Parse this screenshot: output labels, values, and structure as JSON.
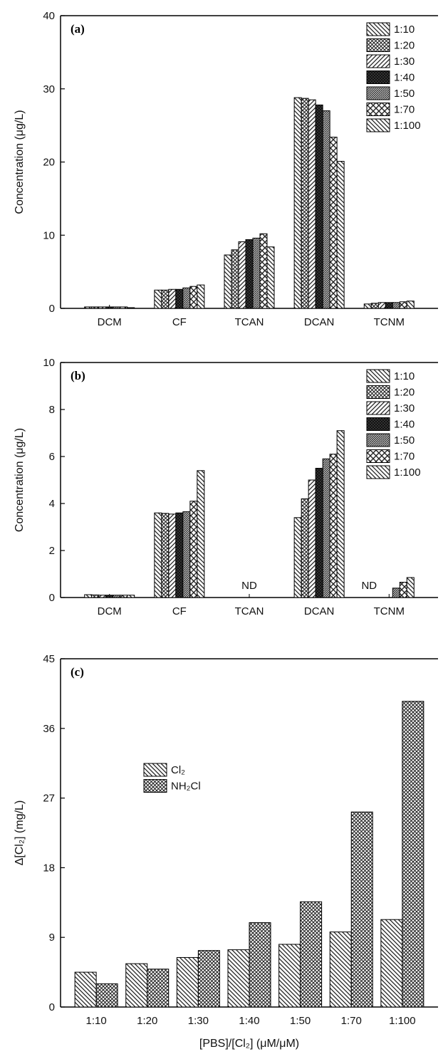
{
  "chart_data": [
    {
      "type": "bar",
      "panel_label": "(a)",
      "ylabel": "Concentration (μg/L)",
      "xlabel": "",
      "ylim": [
        0,
        40
      ],
      "yticks": [
        "0",
        "10",
        "20",
        "30",
        "40"
      ],
      "categories": [
        "DCM",
        "CF",
        "TCAN",
        "DCAN",
        "TCNM"
      ],
      "legend_position": "top-right",
      "series": [
        {
          "name": "1:10",
          "pattern": "diag-back",
          "values": [
            0.2,
            2.5,
            7.3,
            28.8,
            0.6
          ]
        },
        {
          "name": "1:20",
          "pattern": "cross",
          "values": [
            0.2,
            2.5,
            8.0,
            28.7,
            0.7
          ]
        },
        {
          "name": "1:30",
          "pattern": "diag-fwd",
          "values": [
            0.2,
            2.6,
            9.1,
            28.5,
            0.8
          ]
        },
        {
          "name": "1:40",
          "pattern": "dense-cross",
          "values": [
            0.2,
            2.6,
            9.4,
            27.8,
            0.8
          ]
        },
        {
          "name": "1:50",
          "pattern": "hatch-fwd",
          "values": [
            0.2,
            2.8,
            9.6,
            27.0,
            0.8
          ]
        },
        {
          "name": "1:70",
          "pattern": "check",
          "values": [
            0.2,
            3.0,
            10.2,
            23.4,
            0.9
          ]
        },
        {
          "name": "1:100",
          "pattern": "diag-back",
          "values": [
            0.1,
            3.2,
            8.4,
            20.1,
            1.0
          ]
        }
      ]
    },
    {
      "type": "bar",
      "panel_label": "(b)",
      "ylabel": "Concentration (μg/L)",
      "xlabel": "",
      "ylim": [
        0,
        10
      ],
      "yticks": [
        "0",
        "2",
        "4",
        "6",
        "8",
        "10"
      ],
      "categories": [
        "DCM",
        "CF",
        "TCAN",
        "DCAN",
        "TCNM"
      ],
      "legend_position": "top-right",
      "annotations": [
        {
          "text": "ND",
          "category": "TCAN"
        },
        {
          "text": "ND",
          "category": "TCNM"
        }
      ],
      "series": [
        {
          "name": "1:10",
          "pattern": "diag-back",
          "values": [
            0.12,
            3.6,
            0,
            3.4,
            0
          ]
        },
        {
          "name": "1:20",
          "pattern": "cross",
          "values": [
            0.11,
            3.58,
            0,
            4.2,
            0
          ]
        },
        {
          "name": "1:30",
          "pattern": "diag-fwd",
          "values": [
            0.1,
            3.55,
            0,
            5.0,
            0
          ]
        },
        {
          "name": "1:40",
          "pattern": "dense-cross",
          "values": [
            0.1,
            3.6,
            0,
            5.5,
            0
          ]
        },
        {
          "name": "1:50",
          "pattern": "hatch-fwd",
          "values": [
            0.1,
            3.65,
            0,
            5.9,
            0.4
          ]
        },
        {
          "name": "1:70",
          "pattern": "check",
          "values": [
            0.1,
            4.1,
            0,
            6.1,
            0.65
          ]
        },
        {
          "name": "1:100",
          "pattern": "diag-back",
          "values": [
            0.1,
            5.4,
            0,
            7.1,
            0.85
          ]
        }
      ]
    },
    {
      "type": "bar",
      "panel_label": "(c)",
      "ylabel": "Δ[Cl₂] (mg/L)",
      "xlabel": "[PBS]/[Cl₂] (μM/μM)",
      "ylim": [
        0,
        45
      ],
      "yticks": [
        "0",
        "9",
        "18",
        "27",
        "36",
        "45"
      ],
      "categories": [
        "1:10",
        "1:20",
        "1:30",
        "1:40",
        "1:50",
        "1:70",
        "1:100"
      ],
      "legend_position": "top-left",
      "series": [
        {
          "name": "Cl₂",
          "pattern": "diag-back",
          "values": [
            4.5,
            5.6,
            6.4,
            7.4,
            8.1,
            9.7,
            11.3
          ]
        },
        {
          "name": "NH₂Cl",
          "pattern": "cross",
          "values": [
            3.0,
            4.9,
            7.3,
            10.9,
            13.6,
            25.2,
            39.5
          ]
        }
      ]
    }
  ]
}
